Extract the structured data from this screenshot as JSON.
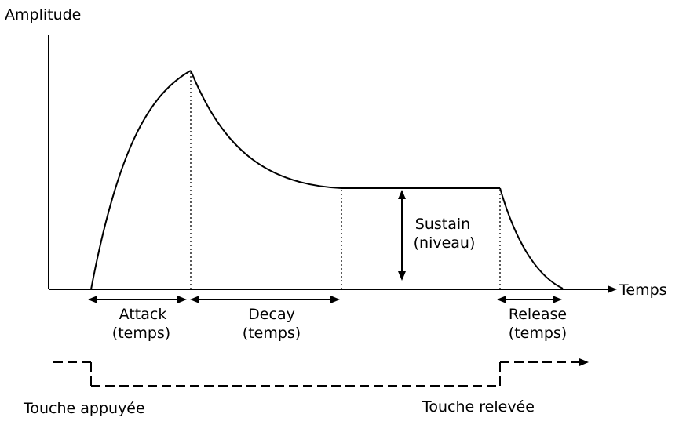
{
  "axes": {
    "y_label": "Amplitude",
    "x_label": "Temps"
  },
  "phases": {
    "attack": {
      "name": "Attack",
      "sub": "(temps)"
    },
    "decay": {
      "name": "Decay",
      "sub": "(temps)"
    },
    "sustain": {
      "name": "Sustain",
      "sub": "(niveau)"
    },
    "release": {
      "name": "Release",
      "sub": "(temps)"
    }
  },
  "key_events": {
    "pressed": "Touche appuyée",
    "released": "Touche relevée"
  }
}
